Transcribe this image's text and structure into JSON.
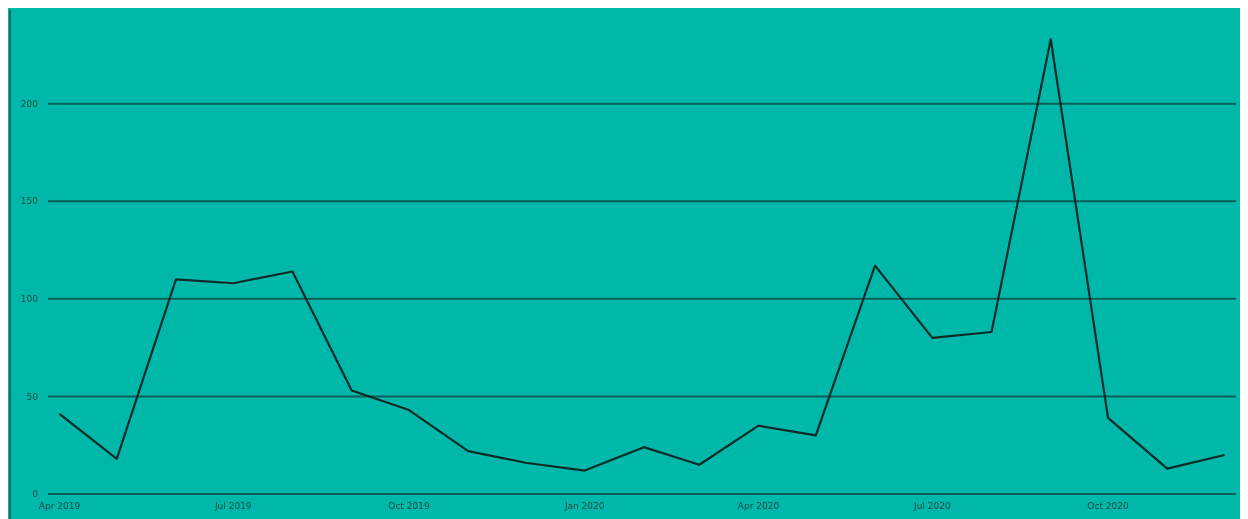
{
  "chart_data": {
    "type": "line",
    "x": [
      "2019-04",
      "2019-05",
      "2019-06",
      "2019-07",
      "2019-08",
      "2019-09",
      "2019-10",
      "2019-11",
      "2019-12",
      "2020-01",
      "2020-02",
      "2020-03",
      "2020-04",
      "2020-05",
      "2020-06",
      "2020-07",
      "2020-08",
      "2020-09",
      "2020-10",
      "2020-11",
      "2020-12"
    ],
    "series": [
      {
        "color": "#0d2b29",
        "values": [
          41,
          18,
          110,
          108,
          114,
          53,
          43,
          22,
          16,
          12,
          24,
          15,
          35,
          30,
          117,
          80,
          83,
          233,
          39,
          13,
          20
        ]
      }
    ],
    "xlim": [
      "2019-03-26",
      "2020-12-07"
    ],
    "xticks": [
      {
        "value": "2019-04",
        "label": "Apr 2019"
      },
      {
        "value": "2019-07",
        "label": "Jul 2019"
      },
      {
        "value": "2019-10",
        "label": "Oct 2019"
      },
      {
        "value": "2020-01",
        "label": "Jan 2020"
      },
      {
        "value": "2020-04",
        "label": "Apr 2020"
      },
      {
        "value": "2020-07",
        "label": "Jul 2020"
      },
      {
        "value": "2020-10",
        "label": "Oct 2020"
      }
    ],
    "ylim": [
      0,
      248
    ],
    "yticks": [
      0,
      50,
      100,
      150,
      200
    ],
    "grid": "y",
    "marker": "none",
    "line_style": "solid"
  }
}
